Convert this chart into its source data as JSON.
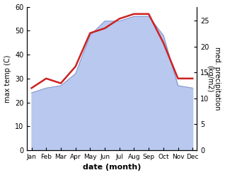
{
  "months": [
    "Jan",
    "Feb",
    "Mar",
    "Apr",
    "May",
    "Jun",
    "Jul",
    "Aug",
    "Sep",
    "Oct",
    "Nov",
    "Dec"
  ],
  "month_indices": [
    0,
    1,
    2,
    3,
    4,
    5,
    6,
    7,
    8,
    9,
    10,
    11
  ],
  "temperature": [
    26,
    30,
    28,
    35,
    49,
    51,
    55,
    57,
    57,
    45,
    30,
    30
  ],
  "precipitation": [
    24,
    26,
    27,
    32,
    48,
    54,
    54,
    56,
    56,
    48,
    27,
    26
  ],
  "temp_ylim": [
    0,
    60
  ],
  "precip_ylim": [
    0,
    27.692
  ],
  "temp_color": "#cc2222",
  "precip_fill_color": "#b8c8ee",
  "precip_line_color": "#8899cc",
  "left_label": "max temp (C)",
  "right_label": "med. precipitation\n(kg/m2)",
  "xlabel": "date (month)",
  "right_yticks": [
    0,
    5,
    10,
    15,
    20,
    25
  ],
  "left_yticks": [
    0,
    10,
    20,
    30,
    40,
    50,
    60
  ]
}
